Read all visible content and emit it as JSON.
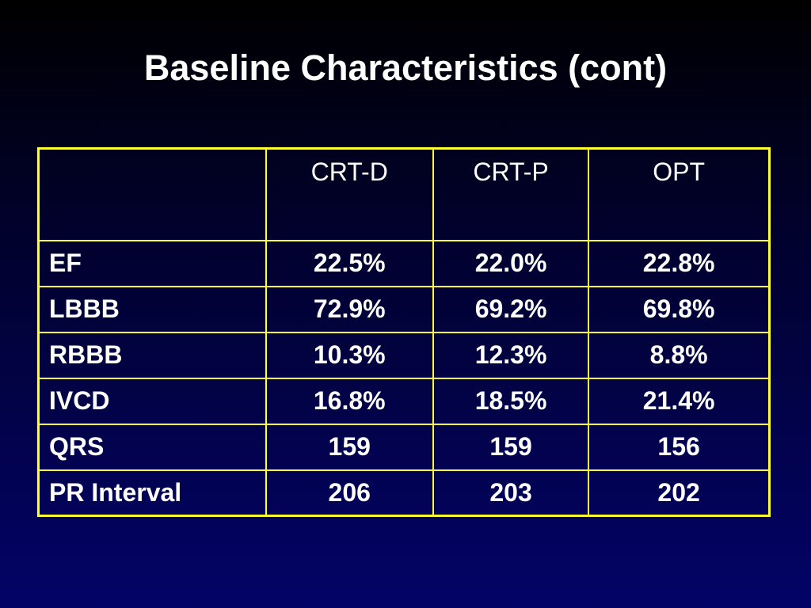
{
  "title": "Baseline Characteristics (cont)",
  "table": {
    "columns": [
      "",
      "CRT-D",
      "CRT-P",
      "OPT"
    ],
    "rows": [
      {
        "label": "EF",
        "values": [
          "22.5%",
          "22.0%",
          "22.8%"
        ]
      },
      {
        "label": "LBBB",
        "values": [
          "72.9%",
          "69.2%",
          "69.8%"
        ]
      },
      {
        "label": "RBBB",
        "values": [
          "10.3%",
          "12.3%",
          "8.8%"
        ]
      },
      {
        "label": "IVCD",
        "values": [
          "16.8%",
          "18.5%",
          "21.4%"
        ]
      },
      {
        "label": "QRS",
        "values": [
          "159",
          "159",
          "156"
        ]
      },
      {
        "label": "PR Interval",
        "values": [
          "206",
          "203",
          "202"
        ]
      }
    ]
  },
  "colors": {
    "background_top": "#000000",
    "background_bottom": "#030367",
    "border": "#ffff33",
    "text": "#ffffff"
  }
}
